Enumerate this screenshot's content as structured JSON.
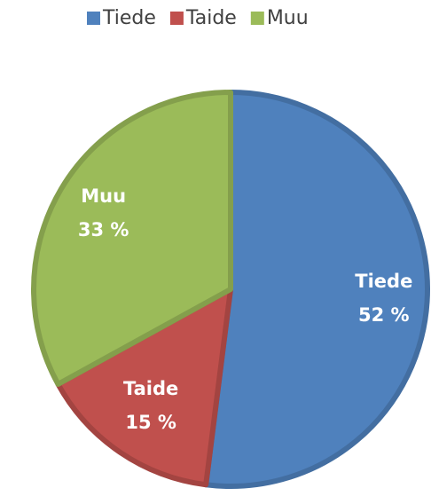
{
  "chart_data": {
    "type": "pie",
    "categories": [
      "Tiede",
      "Taide",
      "Muu"
    ],
    "values": [
      52,
      15,
      33
    ],
    "value_labels": [
      "52 %",
      "15 %",
      "33 %"
    ],
    "colors": [
      "#4f81bd",
      "#c0504d",
      "#9bbb59"
    ],
    "legend": "top"
  }
}
